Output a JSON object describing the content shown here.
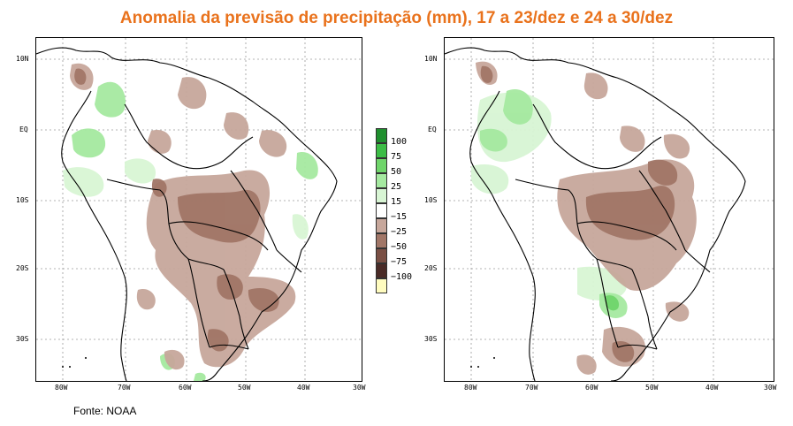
{
  "title": "Anomalia da previsão de precipitação (mm), 17 a 23/dez e 24 a 30/dez",
  "source": "Fonte: NOAA",
  "lat_labels": [
    "10N",
    "EQ",
    "10S",
    "20S",
    "30S"
  ],
  "lon_labels": [
    "80W",
    "70W",
    "60W",
    "50W",
    "40W",
    "30W"
  ],
  "legend": {
    "labels": [
      "100",
      "75",
      "50",
      "25",
      "15",
      "−15",
      "−25",
      "−50",
      "−75",
      "−100"
    ],
    "colors": [
      "#1f8f2e",
      "#3cbd46",
      "#6fd56a",
      "#a5e9a0",
      "#d8f5d4",
      "#ffffff",
      "#c7a79b",
      "#a17667",
      "#7a4f44",
      "#4a2b27",
      "#fffcbf"
    ]
  },
  "maps": [
    {
      "name": "17 a 23/dez"
    },
    {
      "name": "24 a 30/dez"
    }
  ]
}
